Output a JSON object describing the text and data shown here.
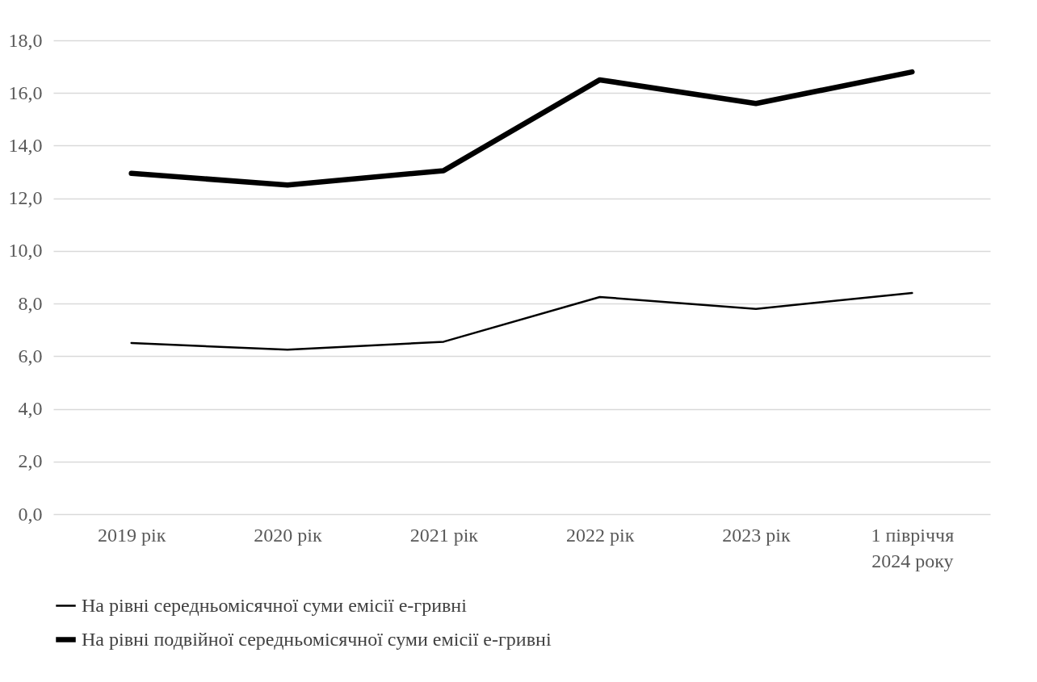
{
  "chart_data": {
    "type": "line",
    "categories": [
      "2019 рік",
      "2020 рік",
      "2021 рік",
      "2022 рік",
      "2023 рік",
      "1 півріччя 2024 року"
    ],
    "series": [
      {
        "name": "На рівні середньомісячної суми емісії е-гривні",
        "color": "#000000",
        "values": [
          6.5,
          6.25,
          6.55,
          8.25,
          7.8,
          8.4
        ]
      },
      {
        "name": "На рівні подвійної середньомісячної суми емісії е-гривні",
        "color": "#000000",
        "values": [
          12.95,
          12.5,
          13.05,
          16.5,
          15.6,
          16.8
        ]
      }
    ],
    "ylim": [
      0,
      18
    ],
    "yticks": [
      {
        "value": 0,
        "label": "0,0"
      },
      {
        "value": 2,
        "label": "2,0"
      },
      {
        "value": 4,
        "label": "4,0"
      },
      {
        "value": 6,
        "label": "6,0"
      },
      {
        "value": 8,
        "label": "8,0"
      },
      {
        "value": 10,
        "label": "10,0"
      },
      {
        "value": 12,
        "label": "12,0"
      },
      {
        "value": 14,
        "label": "14,0"
      },
      {
        "value": 16,
        "label": "16,0"
      },
      {
        "value": 18,
        "label": "18,0"
      }
    ],
    "grid": "y",
    "legend": "bottom",
    "marker": "none",
    "line_style": "solid"
  }
}
